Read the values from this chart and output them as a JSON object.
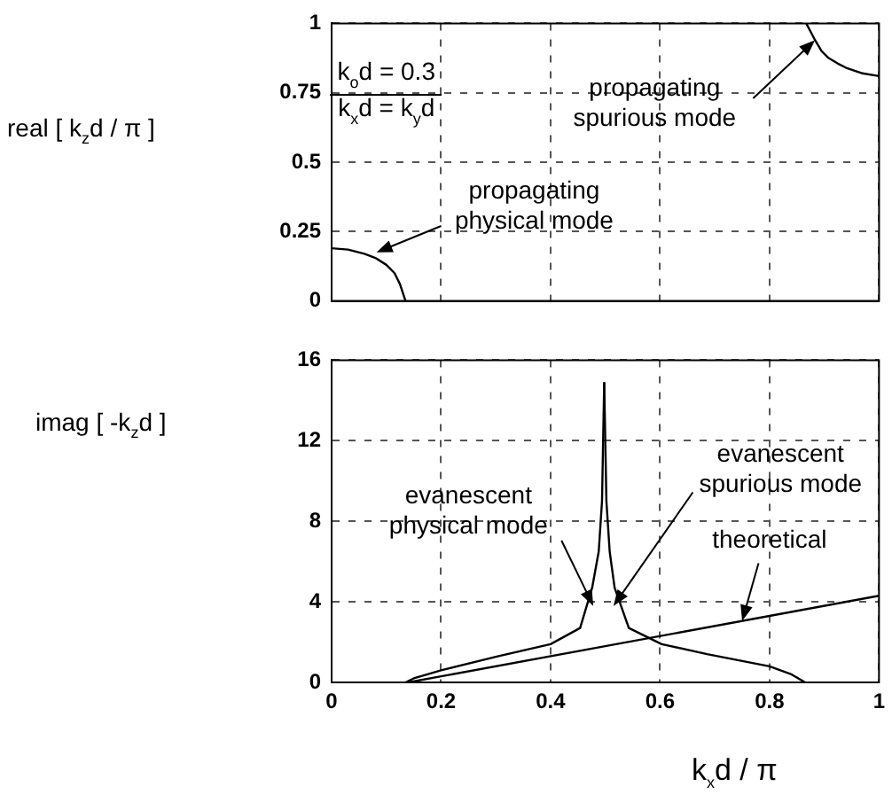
{
  "chart_data": [
    {
      "type": "line",
      "ylabel": "real [ k$_{z}$d / π ]",
      "xlim": [
        0,
        1
      ],
      "xticks": [
        0,
        0.2,
        0.4,
        0.6,
        0.8,
        1
      ],
      "ylim": [
        0,
        1
      ],
      "yticks": [
        0,
        0.25,
        0.5,
        0.75,
        1
      ],
      "tick_labels": "y",
      "grid": true,
      "legend": false,
      "marker": "none",
      "line_style": "solid",
      "series": [
        {
          "color": "#000000",
          "x": [
            0,
            0.03,
            0.06,
            0.08,
            0.1,
            0.115,
            0.125,
            0.135
          ],
          "values": [
            0.19,
            0.185,
            0.17,
            0.155,
            0.13,
            0.1,
            0.06,
            0
          ]
        },
        {
          "color": "#000000",
          "x": [
            0.867,
            0.875,
            0.883,
            0.895,
            0.908,
            0.925,
            0.94,
            0.97,
            1
          ],
          "values": [
            1,
            0.97,
            0.94,
            0.9,
            0.875,
            0.855,
            0.84,
            0.82,
            0.81
          ]
        }
      ],
      "annotations": [
        "k$_{o}$d = 0.3",
        "k$_{x}$d = k$_{y}$d",
        {
          "text": "propagating\nphysical mode",
          "x": 0.082,
          "y": 0.175
        },
        {
          "text": "propagating\nspurious mode",
          "x": 0.883,
          "y": 0.94
        }
      ]
    },
    {
      "type": "line",
      "ylabel": "imag [ -k$_{z}$d ]",
      "xlabel": "k$_{x}$d / π",
      "xlim": [
        0,
        1
      ],
      "xticks": [
        0,
        0.2,
        0.4,
        0.6,
        0.8,
        1
      ],
      "ylim": [
        0,
        16
      ],
      "yticks": [
        0,
        4,
        8,
        12,
        16
      ],
      "grid": true,
      "legend": false,
      "marker": "none",
      "line_style": "solid",
      "series": [
        {
          "color": "#000000",
          "x": [
            0.135,
            0.15,
            0.2,
            0.305,
            0.4,
            0.454,
            0.476,
            0.488,
            0.494,
            0.498
          ],
          "values": [
            0,
            0.2,
            0.6,
            1.3,
            1.9,
            2.7,
            4.7,
            6.5,
            9,
            14.9
          ]
        },
        {
          "color": "#000000",
          "x": [
            0.498,
            0.502,
            0.508,
            0.517,
            0.543,
            0.603,
            0.686,
            0.8,
            0.84,
            0.865
          ],
          "values": [
            14.9,
            9,
            6.5,
            4.7,
            2.7,
            1.9,
            1.4,
            0.8,
            0.4,
            0
          ]
        },
        {
          "color": "#000000",
          "x": [
            0.14,
            1
          ],
          "values": [
            0,
            4.3
          ]
        }
      ],
      "annotations": [
        {
          "text": "evanescent\nphysical mode",
          "x": 0.478,
          "y": 3.8
        },
        {
          "text": "evanescent\nspurious mode",
          "x": 0.515,
          "y": 3.8
        },
        {
          "text": "theoretical",
          "x": 0.75,
          "y": 3.05
        }
      ]
    }
  ]
}
